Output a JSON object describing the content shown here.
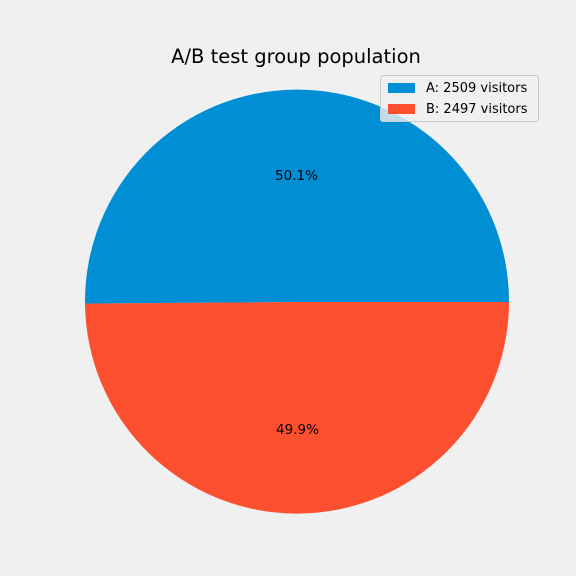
{
  "chart_data": {
    "type": "pie",
    "title": "A/B test group population",
    "slices": [
      {
        "label": "A: 2509 visitors",
        "value": 2509,
        "pct_label": "50.1%",
        "color": "#008fd5"
      },
      {
        "label": "B: 2497 visitors",
        "value": 2497,
        "pct_label": "49.9%",
        "color": "#fc4f30"
      }
    ],
    "legend": {
      "position": "top-right"
    },
    "background": "#f0f0f0"
  }
}
